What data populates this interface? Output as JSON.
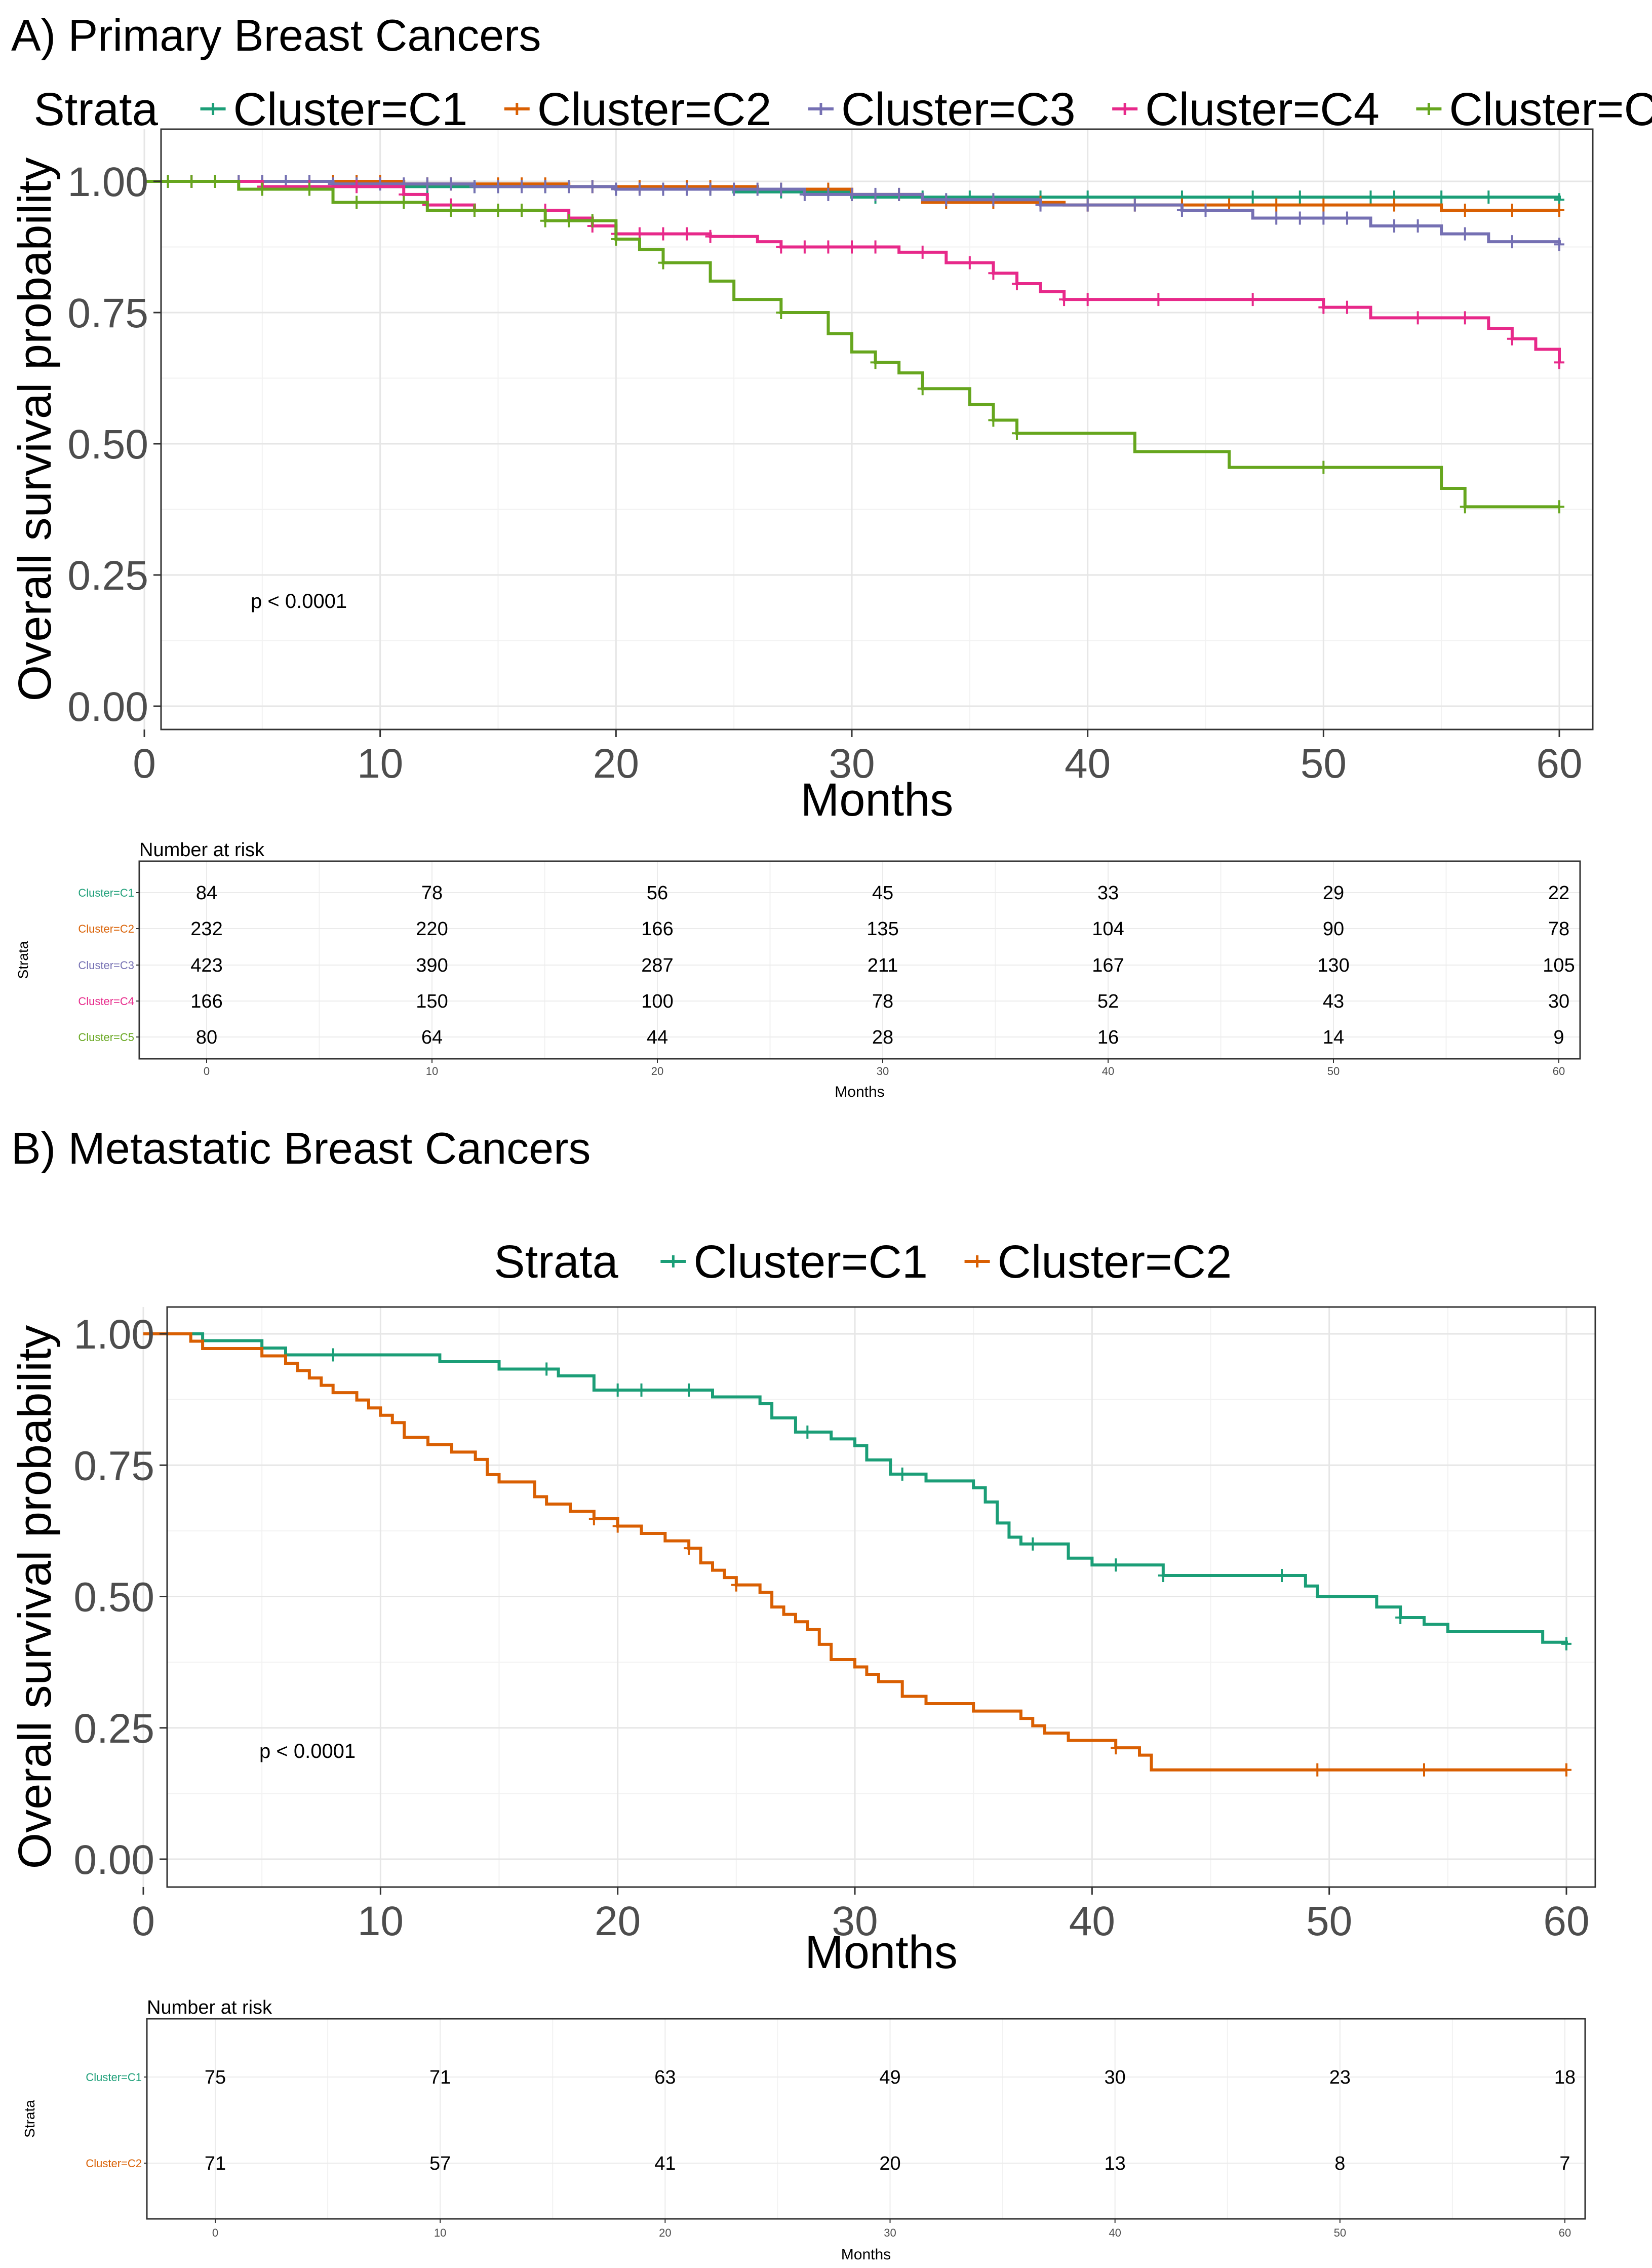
{
  "chart_data": [
    {
      "type": "line",
      "panel_title": "A) Primary Breast Cancers",
      "legend_title": "Strata",
      "xlabel": "Months",
      "ylabel": "Overall survival probability",
      "xlim": [
        0,
        60
      ],
      "ylim": [
        0,
        1
      ],
      "x_ticks": [
        0,
        10,
        20,
        30,
        40,
        50,
        60
      ],
      "y_ticks": [
        "0.00",
        "0.25",
        "0.50",
        "0.75",
        "1.00"
      ],
      "legend_position": "top",
      "grid": true,
      "annotation": "p < 0.0001",
      "series": [
        {
          "name": "Cluster=C1",
          "color": "#1b9e77",
          "steps": [
            [
              0,
              1.0
            ],
            [
              10,
              0.99
            ],
            [
              20,
              0.985
            ],
            [
              25,
              0.98
            ],
            [
              30,
              0.97
            ],
            [
              60,
              0.965
            ]
          ],
          "censor": [
            1,
            2,
            3,
            5,
            6,
            7,
            8,
            9,
            11,
            12,
            14,
            15,
            17,
            20,
            22,
            24,
            27,
            29,
            31,
            33,
            35,
            38,
            40,
            44,
            47,
            49,
            52,
            53,
            55,
            57,
            60
          ]
        },
        {
          "name": "Cluster=C2",
          "color": "#d95f02",
          "steps": [
            [
              0,
              1.0
            ],
            [
              11,
              0.995
            ],
            [
              18,
              0.99
            ],
            [
              26,
              0.985
            ],
            [
              30,
              0.975
            ],
            [
              33,
              0.96
            ],
            [
              39,
              0.955
            ],
            [
              55,
              0.945
            ],
            [
              60,
              0.945
            ]
          ],
          "censor": [
            1,
            2,
            3,
            4,
            5,
            7,
            8,
            9,
            10,
            12,
            13,
            15,
            16,
            17,
            19,
            21,
            23,
            24,
            27,
            29,
            30,
            32,
            34,
            36,
            38,
            40,
            42,
            44,
            46,
            48,
            50,
            53,
            56,
            58,
            60
          ]
        },
        {
          "name": "Cluster=C3",
          "color": "#7570b3",
          "steps": [
            [
              0,
              1.0
            ],
            [
              8,
              0.995
            ],
            [
              14,
              0.99
            ],
            [
              20,
              0.985
            ],
            [
              28,
              0.975
            ],
            [
              33,
              0.965
            ],
            [
              38,
              0.955
            ],
            [
              44,
              0.945
            ],
            [
              47,
              0.93
            ],
            [
              52,
              0.915
            ],
            [
              55,
              0.9
            ],
            [
              57,
              0.885
            ],
            [
              60,
              0.88
            ]
          ],
          "censor": [
            1,
            2,
            3,
            4,
            5,
            6,
            7,
            8,
            9,
            10,
            11,
            12,
            13,
            14,
            15,
            16,
            17,
            18,
            19,
            20,
            21,
            22,
            23,
            24,
            25,
            26,
            27,
            28,
            29,
            30,
            31,
            32,
            34,
            36,
            38,
            40,
            42,
            44,
            45,
            48,
            49,
            50,
            51,
            53,
            54,
            56,
            58,
            60
          ]
        },
        {
          "name": "Cluster=C4",
          "color": "#e7298a",
          "steps": [
            [
              0,
              1.0
            ],
            [
              5,
              0.99
            ],
            [
              11,
              0.975
            ],
            [
              12,
              0.955
            ],
            [
              14,
              0.945
            ],
            [
              18,
              0.93
            ],
            [
              19,
              0.915
            ],
            [
              20,
              0.9
            ],
            [
              24,
              0.895
            ],
            [
              26,
              0.885
            ],
            [
              27,
              0.875
            ],
            [
              32,
              0.865
            ],
            [
              34,
              0.845
            ],
            [
              36,
              0.825
            ],
            [
              37,
              0.805
            ],
            [
              38,
              0.79
            ],
            [
              39,
              0.775
            ],
            [
              50,
              0.76
            ],
            [
              52,
              0.74
            ],
            [
              57,
              0.72
            ],
            [
              58,
              0.7
            ],
            [
              59,
              0.68
            ],
            [
              60,
              0.655
            ]
          ],
          "censor": [
            2,
            3,
            5,
            7,
            9,
            11,
            12,
            13,
            14,
            15,
            16,
            17,
            19,
            20,
            21,
            22,
            23,
            24,
            27,
            28,
            29,
            30,
            31,
            33,
            35,
            36,
            37,
            39,
            40,
            43,
            47,
            50,
            51,
            54,
            56,
            58,
            60
          ]
        },
        {
          "name": "Cluster=C5",
          "color": "#66a61e",
          "steps": [
            [
              0,
              1.0
            ],
            [
              4,
              0.985
            ],
            [
              8,
              0.96
            ],
            [
              12,
              0.945
            ],
            [
              17,
              0.925
            ],
            [
              20,
              0.89
            ],
            [
              21,
              0.87
            ],
            [
              22,
              0.845
            ],
            [
              24,
              0.81
            ],
            [
              25,
              0.775
            ],
            [
              27,
              0.75
            ],
            [
              29,
              0.71
            ],
            [
              30,
              0.675
            ],
            [
              31,
              0.655
            ],
            [
              32,
              0.635
            ],
            [
              33,
              0.605
            ],
            [
              35,
              0.575
            ],
            [
              36,
              0.545
            ],
            [
              37,
              0.52
            ],
            [
              42,
              0.485
            ],
            [
              46,
              0.455
            ],
            [
              55,
              0.415
            ],
            [
              56,
              0.38
            ],
            [
              60,
              0.38
            ]
          ],
          "censor": [
            1,
            2,
            3,
            5,
            7,
            9,
            11,
            13,
            14,
            15,
            16,
            17,
            18,
            19,
            20,
            22,
            27,
            31,
            33,
            36,
            37,
            50,
            56,
            60
          ]
        }
      ],
      "risk_table": {
        "title": "Number at risk",
        "yaxis_title": "Strata",
        "xlabel": "Months",
        "times": [
          0,
          10,
          20,
          30,
          40,
          50,
          60
        ],
        "time_labels": [
          "0",
          "10",
          "20",
          "30",
          "40",
          "50",
          "60"
        ],
        "rows": [
          {
            "label": "Cluster=C1",
            "values": [
              "84",
              "78",
              "56",
              "45",
              "33",
              "29",
              "22"
            ]
          },
          {
            "label": "Cluster=C2",
            "values": [
              "232",
              "220",
              "166",
              "135",
              "104",
              "90",
              "78"
            ]
          },
          {
            "label": "Cluster=C3",
            "values": [
              "423",
              "390",
              "287",
              "211",
              "167",
              "130",
              "105"
            ]
          },
          {
            "label": "Cluster=C4",
            "values": [
              "166",
              "150",
              "100",
              "78",
              "52",
              "43",
              "30"
            ]
          },
          {
            "label": "Cluster=C5",
            "values": [
              "80",
              "64",
              "44",
              "28",
              "16",
              "14",
              "9"
            ]
          }
        ]
      }
    },
    {
      "type": "line",
      "panel_title": "B) Metastatic Breast Cancers",
      "legend_title": "Strata",
      "xlabel": "Months",
      "ylabel": "Overall survival probability",
      "xlim": [
        0,
        60
      ],
      "ylim": [
        0,
        1
      ],
      "x_ticks": [
        0,
        10,
        20,
        30,
        40,
        50,
        60
      ],
      "y_ticks": [
        "0.00",
        "0.25",
        "0.50",
        "0.75",
        "1.00"
      ],
      "legend_position": "top",
      "grid": true,
      "annotation": "p < 0.0001",
      "series": [
        {
          "name": "Cluster=C1",
          "color": "#1b9e77",
          "steps": [
            [
              0,
              1.0
            ],
            [
              2.5,
              0.987
            ],
            [
              5,
              0.973
            ],
            [
              6,
              0.96
            ],
            [
              12.5,
              0.947
            ],
            [
              15,
              0.933
            ],
            [
              17.5,
              0.92
            ],
            [
              19,
              0.893
            ],
            [
              24,
              0.88
            ],
            [
              26,
              0.867
            ],
            [
              26.5,
              0.84
            ],
            [
              27.5,
              0.813
            ],
            [
              29,
              0.8
            ],
            [
              30,
              0.787
            ],
            [
              30.5,
              0.76
            ],
            [
              31.5,
              0.733
            ],
            [
              33,
              0.72
            ],
            [
              35,
              0.707
            ],
            [
              35.5,
              0.68
            ],
            [
              36,
              0.64
            ],
            [
              36.5,
              0.613
            ],
            [
              37,
              0.6
            ],
            [
              39,
              0.573
            ],
            [
              40,
              0.56
            ],
            [
              43,
              0.54
            ],
            [
              49,
              0.52
            ],
            [
              49.5,
              0.5
            ],
            [
              52,
              0.48
            ],
            [
              53,
              0.46
            ],
            [
              54,
              0.447
            ],
            [
              55,
              0.433
            ],
            [
              59,
              0.413
            ],
            [
              60,
              0.41
            ]
          ],
          "censor": [
            8,
            17,
            20,
            21,
            23,
            28,
            32,
            37.5,
            41,
            43,
            48,
            53,
            60
          ]
        },
        {
          "name": "Cluster=C2",
          "color": "#d95f02",
          "steps": [
            [
              0,
              1.0
            ],
            [
              2,
              0.986
            ],
            [
              2.5,
              0.972
            ],
            [
              5,
              0.958
            ],
            [
              6,
              0.944
            ],
            [
              6.5,
              0.93
            ],
            [
              7,
              0.916
            ],
            [
              7.5,
              0.902
            ],
            [
              8,
              0.888
            ],
            [
              9,
              0.874
            ],
            [
              9.5,
              0.859
            ],
            [
              10,
              0.845
            ],
            [
              10.5,
              0.831
            ],
            [
              11,
              0.803
            ],
            [
              12,
              0.789
            ],
            [
              13,
              0.775
            ],
            [
              14,
              0.761
            ],
            [
              14.5,
              0.732
            ],
            [
              15,
              0.718
            ],
            [
              16.5,
              0.69
            ],
            [
              17,
              0.676
            ],
            [
              18,
              0.662
            ],
            [
              19,
              0.648
            ],
            [
              20,
              0.634
            ],
            [
              21,
              0.62
            ],
            [
              22,
              0.606
            ],
            [
              23,
              0.592
            ],
            [
              23.5,
              0.564
            ],
            [
              24,
              0.55
            ],
            [
              24.5,
              0.536
            ],
            [
              25,
              0.522
            ],
            [
              26,
              0.508
            ],
            [
              26.5,
              0.48
            ],
            [
              27,
              0.466
            ],
            [
              27.5,
              0.452
            ],
            [
              28,
              0.437
            ],
            [
              28.5,
              0.409
            ],
            [
              29,
              0.38
            ],
            [
              30,
              0.366
            ],
            [
              30.5,
              0.352
            ],
            [
              31,
              0.338
            ],
            [
              32,
              0.31
            ],
            [
              33,
              0.296
            ],
            [
              35,
              0.282
            ],
            [
              37,
              0.268
            ],
            [
              37.5,
              0.254
            ],
            [
              38,
              0.24
            ],
            [
              39,
              0.226
            ],
            [
              41,
              0.212
            ],
            [
              42,
              0.198
            ],
            [
              42.5,
              0.17
            ],
            [
              60,
              0.17
            ]
          ],
          "censor": [
            19,
            20,
            23,
            25,
            41,
            49.5,
            54,
            60
          ]
        }
      ],
      "risk_table": {
        "title": "Number at risk",
        "yaxis_title": "Strata",
        "xlabel": "Months",
        "times": [
          0,
          10,
          20,
          30,
          40,
          50,
          60
        ],
        "time_labels": [
          "0",
          "10",
          "20",
          "30",
          "40",
          "50",
          "60"
        ],
        "rows": [
          {
            "label": "Cluster=C1",
            "values": [
              "75",
              "71",
              "63",
              "49",
              "30",
              "23",
              "18"
            ]
          },
          {
            "label": "Cluster=C2",
            "values": [
              "71",
              "57",
              "41",
              "20",
              "13",
              "8",
              "7"
            ]
          }
        ]
      }
    }
  ]
}
